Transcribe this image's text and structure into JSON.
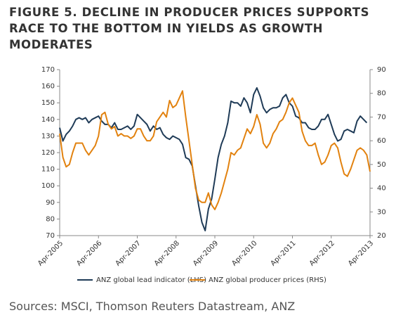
{
  "chart_data": {
    "type": "line",
    "title": "FIGURE 5. DECLINE IN PRODUCER PRICES SUPPORTS RACE TO THE BOTTOM IN YIELDS AS GROWTH MODERATES",
    "source": "Sources: MSCI, Thomson Reuters Datastream, ANZ",
    "categories": [
      "Apr-2005",
      null,
      null,
      null,
      null,
      null,
      null,
      null,
      null,
      null,
      null,
      null,
      "Apr-2006",
      null,
      null,
      null,
      null,
      null,
      null,
      null,
      null,
      null,
      null,
      null,
      "Apr-2007",
      null,
      null,
      null,
      null,
      null,
      null,
      null,
      null,
      null,
      null,
      null,
      "Apr-2008",
      null,
      null,
      null,
      null,
      null,
      null,
      null,
      null,
      null,
      null,
      null,
      "Apr-2009",
      null,
      null,
      null,
      null,
      null,
      null,
      null,
      null,
      null,
      null,
      null,
      "Apr-2010",
      null,
      null,
      null,
      null,
      null,
      null,
      null,
      null,
      null,
      null,
      null,
      "Apr-2011",
      null,
      null,
      null,
      null,
      null,
      null,
      null,
      null,
      null,
      null,
      null,
      "Apr-2012",
      null,
      null,
      null,
      null,
      null,
      null,
      null,
      null,
      null,
      null,
      null,
      "Apr-2013"
    ],
    "series": [
      {
        "name": "ANZ global lead indicator (LHS)",
        "color": "#1f3b57",
        "axis": "y",
        "values": [
          135,
          127,
          131,
          133,
          136,
          140,
          141,
          140,
          141,
          138,
          140,
          141,
          142,
          139,
          137,
          137,
          135,
          138,
          134,
          134,
          135,
          136,
          134,
          136,
          143,
          141,
          139,
          137,
          133,
          136,
          134,
          135,
          131,
          129,
          128,
          130,
          129,
          128,
          125,
          117,
          116,
          112,
          100,
          88,
          78,
          73,
          86,
          92,
          104,
          117,
          125,
          130,
          138,
          151,
          150,
          150,
          148,
          153,
          150,
          144,
          155,
          159,
          154,
          147,
          144,
          146,
          147,
          147,
          148,
          153,
          155,
          150,
          148,
          142,
          141,
          138,
          138,
          135,
          134,
          134,
          136,
          140,
          140,
          143,
          137,
          131,
          127,
          128,
          133,
          134,
          133,
          132,
          139,
          142,
          140,
          138,
          null
        ]
      },
      {
        "name": "ANZ global producer prices (RHS)",
        "color": "#e2820f",
        "axis": "y2",
        "values": [
          63,
          53,
          49,
          50,
          55,
          59,
          59,
          59,
          56,
          54,
          56,
          58,
          62,
          71,
          72,
          67,
          65,
          66,
          62,
          63,
          62,
          62,
          61,
          62,
          65,
          65,
          62,
          60,
          60,
          62,
          68,
          70,
          72,
          70,
          77,
          74,
          75,
          78,
          81,
          70,
          60,
          50,
          40,
          35,
          34,
          34,
          38,
          33,
          31,
          34,
          38,
          43,
          48,
          55,
          54,
          56,
          57,
          61,
          65,
          63,
          66,
          71,
          67,
          59,
          57,
          59,
          63,
          65,
          68,
          69,
          72,
          76,
          78,
          75,
          72,
          64,
          60,
          58,
          58,
          59,
          54,
          50,
          51,
          54,
          58,
          59,
          57,
          51,
          46,
          45,
          48,
          52,
          56,
          57,
          56,
          54,
          47
        ]
      }
    ],
    "ylim": [
      70,
      170
    ],
    "yticks": [
      70,
      80,
      90,
      100,
      110,
      120,
      130,
      140,
      150,
      160,
      170
    ],
    "y2lim": [
      20,
      90
    ],
    "y2ticks": [
      20,
      30,
      40,
      50,
      60,
      70,
      80,
      90
    ],
    "legend": "bottom",
    "grid": false
  }
}
